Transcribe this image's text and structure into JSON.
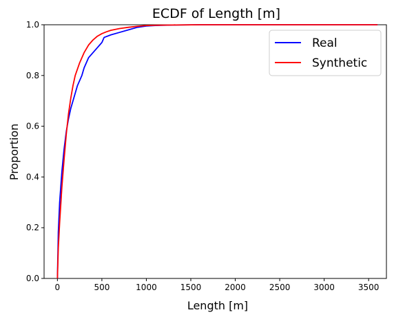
{
  "chart_data": {
    "type": "line",
    "title": "ECDF of Length [m]",
    "xlabel": "Length [m]",
    "ylabel": "Proportion",
    "xlim": [
      -150,
      3700
    ],
    "ylim": [
      0.0,
      1.0
    ],
    "x_ticks": [
      0,
      500,
      1000,
      1500,
      2000,
      2500,
      3000,
      3500
    ],
    "y_ticks": [
      0.0,
      0.2,
      0.4,
      0.6,
      0.8,
      1.0
    ],
    "x_tick_labels": [
      "0",
      "500",
      "1000",
      "1500",
      "2000",
      "2500",
      "3000",
      "3500"
    ],
    "y_tick_labels": [
      "0.0",
      "0.2",
      "0.4",
      "0.6",
      "0.8",
      "1.0"
    ],
    "grid": false,
    "legend_position": "top-right",
    "series": [
      {
        "name": "Real",
        "color": "#0000ff",
        "x": [
          0,
          10,
          25,
          50,
          75,
          100,
          125,
          150,
          175,
          200,
          225,
          250,
          275,
          300,
          325,
          350,
          400,
          450,
          475,
          500,
          525,
          600,
          700,
          800,
          900,
          1000,
          1100,
          1300,
          1600,
          2000,
          2500,
          3000,
          3600
        ],
        "y": [
          0.0,
          0.18,
          0.3,
          0.42,
          0.51,
          0.58,
          0.63,
          0.67,
          0.7,
          0.73,
          0.76,
          0.78,
          0.8,
          0.83,
          0.85,
          0.87,
          0.89,
          0.91,
          0.92,
          0.93,
          0.95,
          0.96,
          0.97,
          0.98,
          0.99,
          0.995,
          0.997,
          0.999,
          1.0,
          1.0,
          1.0,
          1.0,
          1.0
        ]
      },
      {
        "name": "Synthetic",
        "color": "#ff0000",
        "x": [
          0,
          10,
          25,
          50,
          75,
          100,
          125,
          150,
          175,
          200,
          250,
          300,
          350,
          400,
          450,
          500,
          550,
          600,
          700,
          800,
          900,
          1000,
          1100,
          1300,
          1600,
          2000,
          2500,
          3000,
          3600
        ],
        "y": [
          0.0,
          0.12,
          0.22,
          0.36,
          0.47,
          0.57,
          0.65,
          0.71,
          0.76,
          0.8,
          0.85,
          0.89,
          0.92,
          0.94,
          0.955,
          0.965,
          0.972,
          0.978,
          0.985,
          0.99,
          0.994,
          0.997,
          0.998,
          0.999,
          1.0,
          1.0,
          1.0,
          1.0,
          1.0
        ]
      }
    ]
  }
}
